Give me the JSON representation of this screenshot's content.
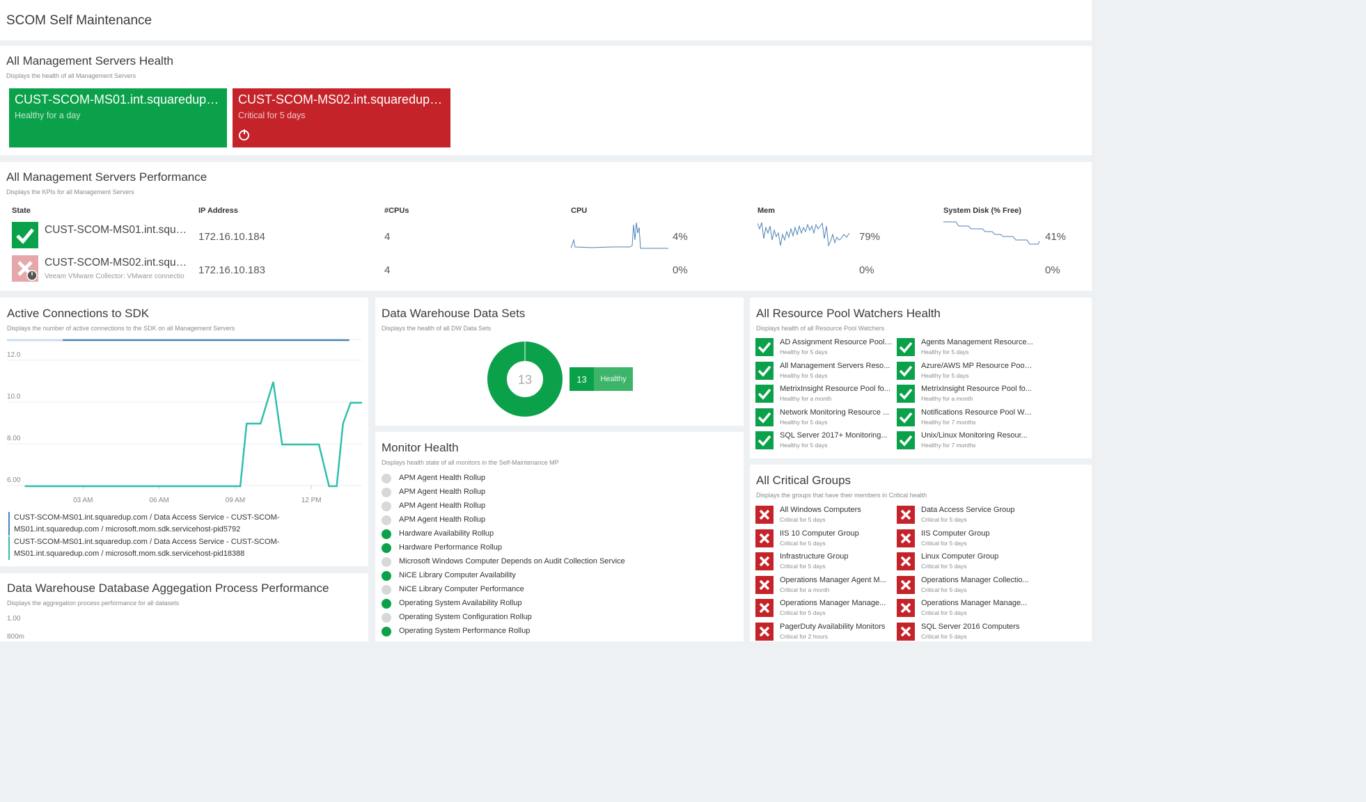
{
  "page": {
    "title": "SCOM Self Maintenance"
  },
  "colors": {
    "healthy": "#0aa14a",
    "critical": "#c5232a",
    "critical_soft": "#e5a7a9",
    "unmonitored": "#d8d8d8",
    "line_blue": "#4a82b8",
    "line_teal": "#2ebfad"
  },
  "ms_health": {
    "title": "All Management Servers Health",
    "subtitle": "Displays the health of all Management Servers",
    "servers": [
      {
        "name": "CUST-SCOM-MS01.int.squaredup.co...",
        "state": "Healthy for a day",
        "status": "healthy"
      },
      {
        "name": "CUST-SCOM-MS02.int.squaredup.c...",
        "state": "Critical for 5 days",
        "status": "critical"
      }
    ]
  },
  "ms_perf": {
    "title": "All Management Servers Performance",
    "subtitle": "Displays the KPIs for all Management Servers",
    "columns": [
      "State",
      "IP Address",
      "#CPUs",
      "CPU",
      "Mem",
      "System Disk (% Free)"
    ],
    "rows": [
      {
        "name": "CUST-SCOM-MS01.int.squar...",
        "sub": "",
        "status": "healthy",
        "ip": "172.16.10.184",
        "cpus": "4",
        "cpu": "4%",
        "mem": "79%",
        "disk": "41%"
      },
      {
        "name": "CUST-SCOM-MS02.int.squar...",
        "sub": "Veeam VMware Collector: VMware connectio",
        "status": "critical",
        "ip": "172.16.10.183",
        "cpus": "4",
        "cpu": "0%",
        "mem": "0%",
        "disk": "0%"
      }
    ]
  },
  "sdk": {
    "title": "Active Connections to SDK",
    "subtitle": "Displays the number of active connections to the SDK on all Management Servers",
    "chart_data": {
      "type": "line",
      "ylim": [
        6,
        13
      ],
      "yticks": [
        "12.0",
        "10.0",
        "8.00",
        "6.00"
      ],
      "xticks": [
        "03 AM",
        "06 AM",
        "09 AM",
        "12 PM"
      ],
      "series": [
        {
          "name": "CUST-SCOM-MS01.int.squaredup.com / Data Access Service - CUST-SCOM-MS01.int.squaredup.com / microsoft.mom.sdk.servicehost-pid5792",
          "color": "#4a82b8",
          "points": [
            [
              0,
              13
            ],
            [
              13.5,
              13
            ]
          ]
        },
        {
          "name": "CUST-SCOM-MS01.int.squaredup.com / Data Access Service - CUST-SCOM-MS01.int.squaredup.com / microsoft.mom.sdk.servicehost-pid18388",
          "color": "#2ebfad",
          "points": [
            [
              0.7,
              6
            ],
            [
              9.2,
              6
            ],
            [
              9.45,
              9
            ],
            [
              10.0,
              9
            ],
            [
              10.5,
              11
            ],
            [
              10.85,
              8
            ],
            [
              12.3,
              8
            ],
            [
              12.7,
              6
            ],
            [
              13.0,
              6
            ],
            [
              13.25,
              9
            ],
            [
              13.55,
              10
            ],
            [
              14.0,
              10
            ]
          ]
        }
      ]
    },
    "legend": [
      "CUST-SCOM-MS01.int.squaredup.com / Data Access Service - CUST-SCOM-MS01.int.squaredup.com / microsoft.mom.sdk.servicehost-pid5792",
      "CUST-SCOM-MS01.int.squaredup.com / Data Access Service - CUST-SCOM-MS01.int.squaredup.com / microsoft.mom.sdk.servicehost-pid18388"
    ]
  },
  "dw_sets": {
    "title": "Data Warehouse Data Sets",
    "subtitle": "Displays the health of all DW Data Sets",
    "chart_data": {
      "type": "pie",
      "values": [
        13
      ],
      "categories": [
        "Healthy"
      ],
      "total": "13"
    },
    "badge_count": "13",
    "badge_label": "Healthy"
  },
  "dw_agg": {
    "title": "Data Warehouse Database Aggegation Process Performance",
    "subtitle": "Displays the aggregation process performance for all datasets",
    "yticks": [
      "1.00",
      "800m"
    ]
  },
  "monitor": {
    "title": "Monitor Health",
    "subtitle": "Displays health state of all monitors in the Self-Maintenance MP",
    "items": [
      {
        "label": "APM Agent Health Rollup",
        "status": "unmonitored"
      },
      {
        "label": "APM Agent Health Rollup",
        "status": "unmonitored"
      },
      {
        "label": "APM Agent Health Rollup",
        "status": "unmonitored"
      },
      {
        "label": "APM Agent Health Rollup",
        "status": "unmonitored"
      },
      {
        "label": "Hardware Availability Rollup",
        "status": "healthy"
      },
      {
        "label": "Hardware Performance Rollup",
        "status": "healthy"
      },
      {
        "label": "Microsoft Windows Computer Depends on Audit Collection Service",
        "status": "unmonitored"
      },
      {
        "label": "NiCE Library Computer Availability",
        "status": "healthy"
      },
      {
        "label": "NiCE Library Computer Performance",
        "status": "unmonitored"
      },
      {
        "label": "Operating System Availability Rollup",
        "status": "healthy"
      },
      {
        "label": "Operating System Configuration Rollup",
        "status": "unmonitored"
      },
      {
        "label": "Operating System Performance Rollup",
        "status": "healthy"
      }
    ]
  },
  "rp_watchers": {
    "title": "All Resource Pool Watchers Health",
    "subtitle": "Displays health of all Resource Pool Watchers",
    "items": [
      {
        "name": "AD Assignment Resource Pool ...",
        "state": "Healthy for 5 days"
      },
      {
        "name": "Agents Management Resource...",
        "state": "Healthy for 5 days"
      },
      {
        "name": "All Management Servers Reso...",
        "state": "Healthy for 5 days"
      },
      {
        "name": "Azure/AWS MP Resource Pool ...",
        "state": "Healthy for 5 days"
      },
      {
        "name": "MetrixInsight Resource Pool fo...",
        "state": "Healthy for a month"
      },
      {
        "name": "MetrixInsight Resource Pool fo...",
        "state": "Healthy for a month"
      },
      {
        "name": "Network Monitoring Resource ...",
        "state": "Healthy for 5 days"
      },
      {
        "name": "Notifications Resource Pool Wa...",
        "state": "Healthy for 7 months"
      },
      {
        "name": "SQL Server 2017+ Monitoring...",
        "state": "Healthy for 5 days"
      },
      {
        "name": "Unix/Linux Monitoring Resour...",
        "state": "Healthy for 7 months"
      }
    ]
  },
  "crit_groups": {
    "title": "All Critical Groups",
    "subtitle": "Displays the groups that have their members in Critical health",
    "items": [
      {
        "name": "All Windows Computers",
        "state": "Critical for 5 days"
      },
      {
        "name": "Data Access Service Group",
        "state": "Critical for 5 days"
      },
      {
        "name": "IIS 10 Computer Group",
        "state": "Critical for 5 days"
      },
      {
        "name": "IIS Computer Group",
        "state": "Critical for 5 days"
      },
      {
        "name": "Infrastructure Group",
        "state": "Critical for 5 days"
      },
      {
        "name": "Linux Computer Group",
        "state": "Critical for 5 days"
      },
      {
        "name": "Operations Manager Agent M...",
        "state": "Critical for a month"
      },
      {
        "name": "Operations Manager Collectio...",
        "state": "Critical for 5 days"
      },
      {
        "name": "Operations Manager Manage...",
        "state": "Critical for 5 days"
      },
      {
        "name": "Operations Manager Manage...",
        "state": "Critical for 5 days"
      },
      {
        "name": "PagerDuty Availability Monitors",
        "state": "Critical for 2 hours"
      },
      {
        "name": "SQL Server 2016 Computers",
        "state": "Critical for 5 days"
      }
    ]
  }
}
